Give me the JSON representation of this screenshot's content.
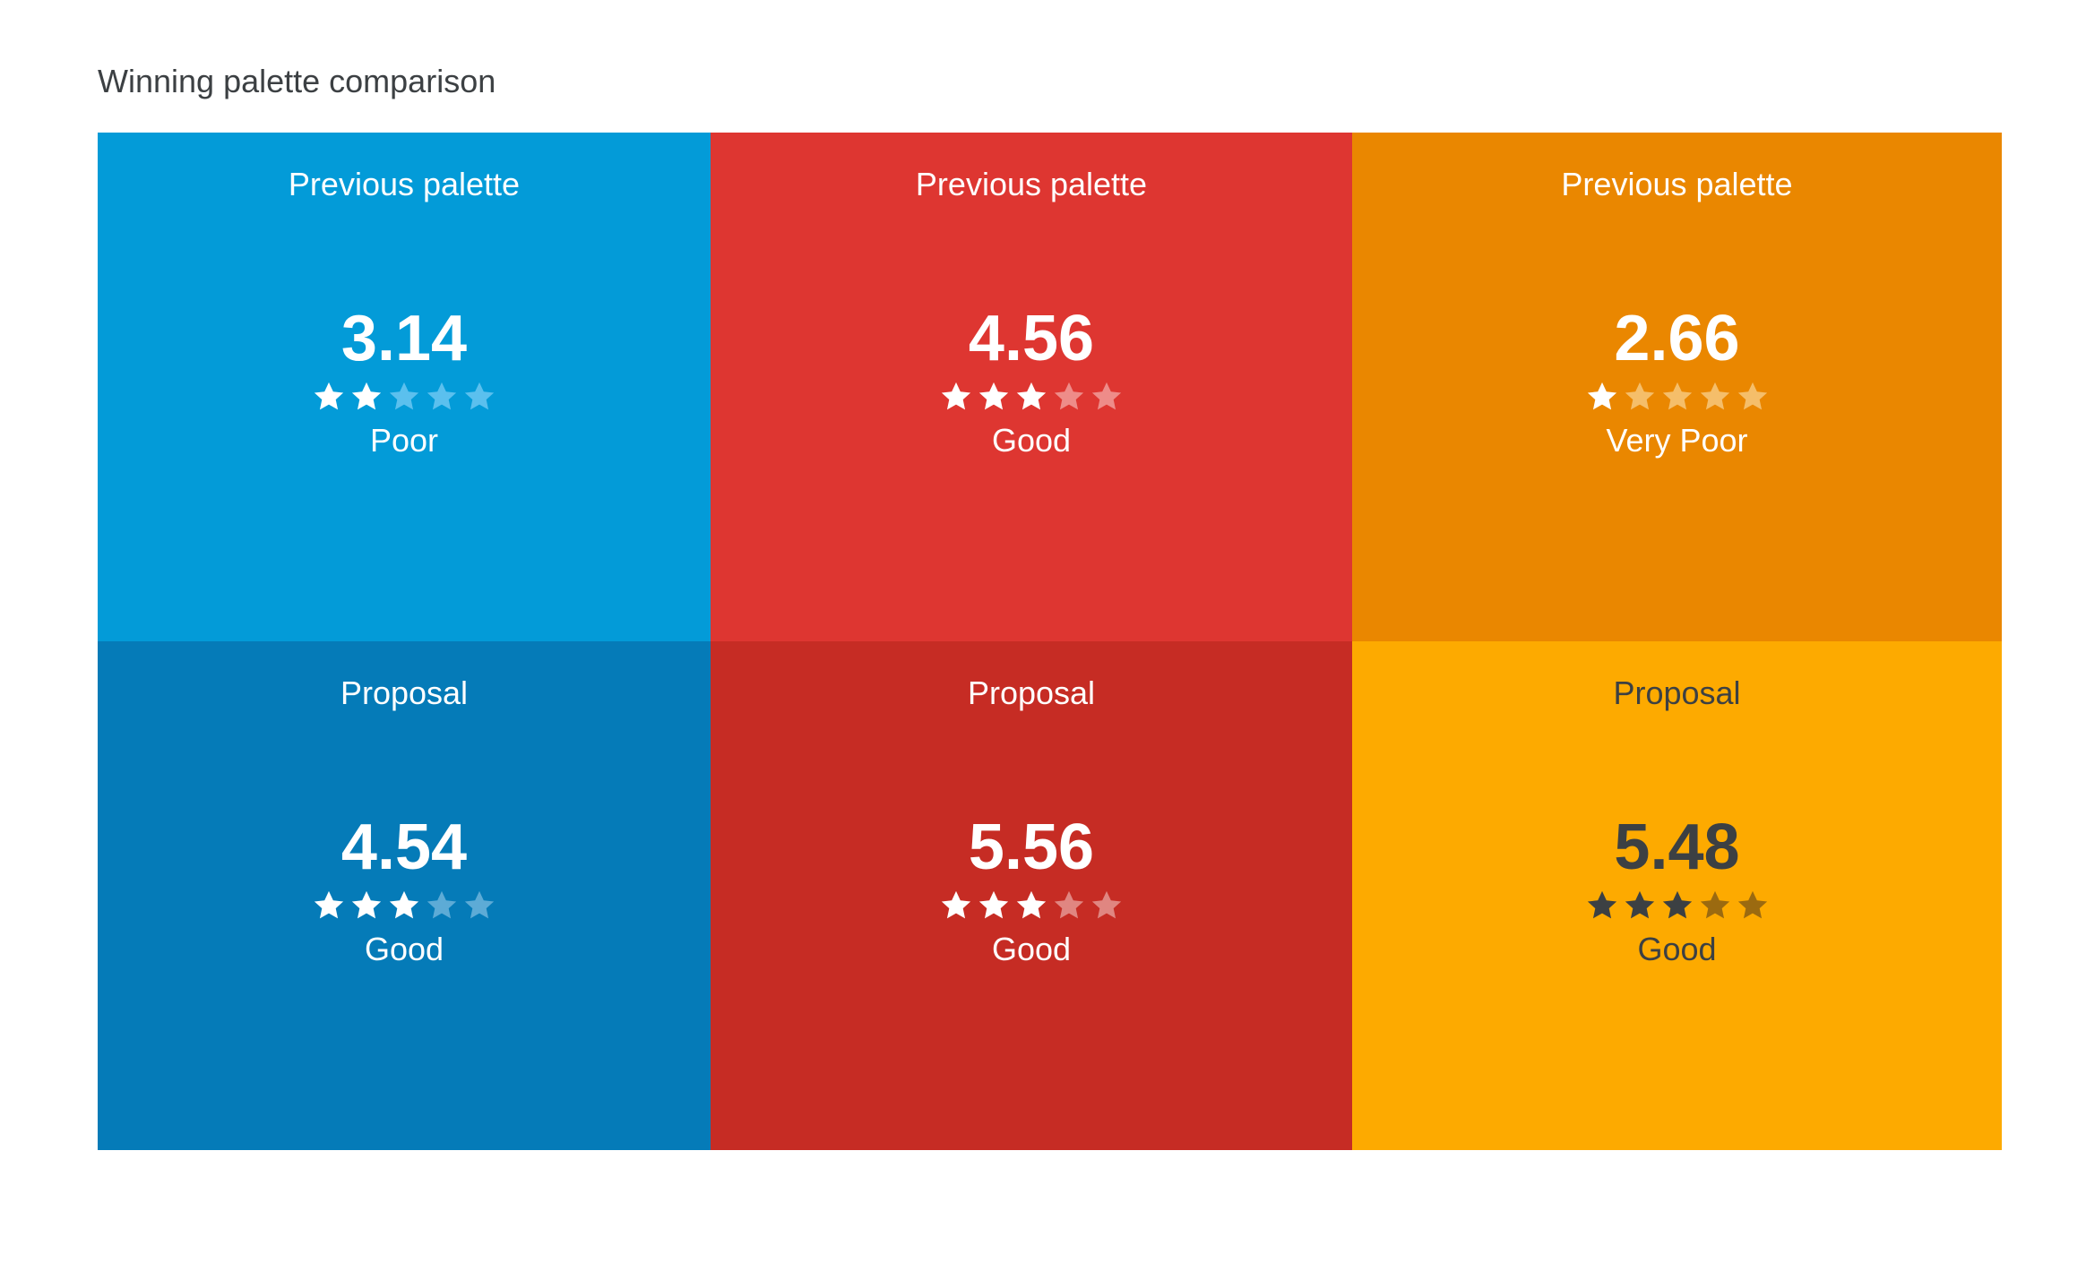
{
  "title": "Winning palette comparison",
  "cells": [
    {
      "label": "Previous palette",
      "score": "3.14",
      "rating": "Poor",
      "stars_filled": 2,
      "stars_total": 5,
      "bg": "#039BD8",
      "text_color": "#FFFFFF",
      "star_on": "#FFFFFF",
      "star_off": "#5BC0EE"
    },
    {
      "label": "Previous palette",
      "score": "4.56",
      "rating": "Good",
      "stars_filled": 3,
      "stars_total": 5,
      "bg": "#DE3631",
      "text_color": "#FFFFFF",
      "star_on": "#FFFFFF",
      "star_off": "#EE8C89"
    },
    {
      "label": "Previous palette",
      "score": "2.66",
      "rating": "Very Poor",
      "stars_filled": 1,
      "stars_total": 5,
      "bg": "#EA8700",
      "text_color": "#FFFFFF",
      "star_on": "#FFFFFF",
      "star_off": "#F5BE6A"
    },
    {
      "label": "Proposal",
      "score": "4.54",
      "rating": "Good",
      "stars_filled": 3,
      "stars_total": 5,
      "bg": "#057BB8",
      "text_color": "#FFFFFF",
      "star_on": "#FFFFFF",
      "star_off": "#5DABD6"
    },
    {
      "label": "Proposal",
      "score": "5.56",
      "rating": "Good",
      "stars_filled": 3,
      "stars_total": 5,
      "bg": "#C62C24",
      "text_color": "#FFFFFF",
      "star_on": "#FFFFFF",
      "star_off": "#E08681"
    },
    {
      "label": "Proposal",
      "score": "5.48",
      "rating": "Good",
      "stars_filled": 3,
      "stars_total": 5,
      "bg": "#FDAA00",
      "text_color": "#3C4043",
      "star_on": "#3C4043",
      "star_off": "#9B6A10"
    }
  ],
  "icons": {
    "star": "star-icon"
  }
}
